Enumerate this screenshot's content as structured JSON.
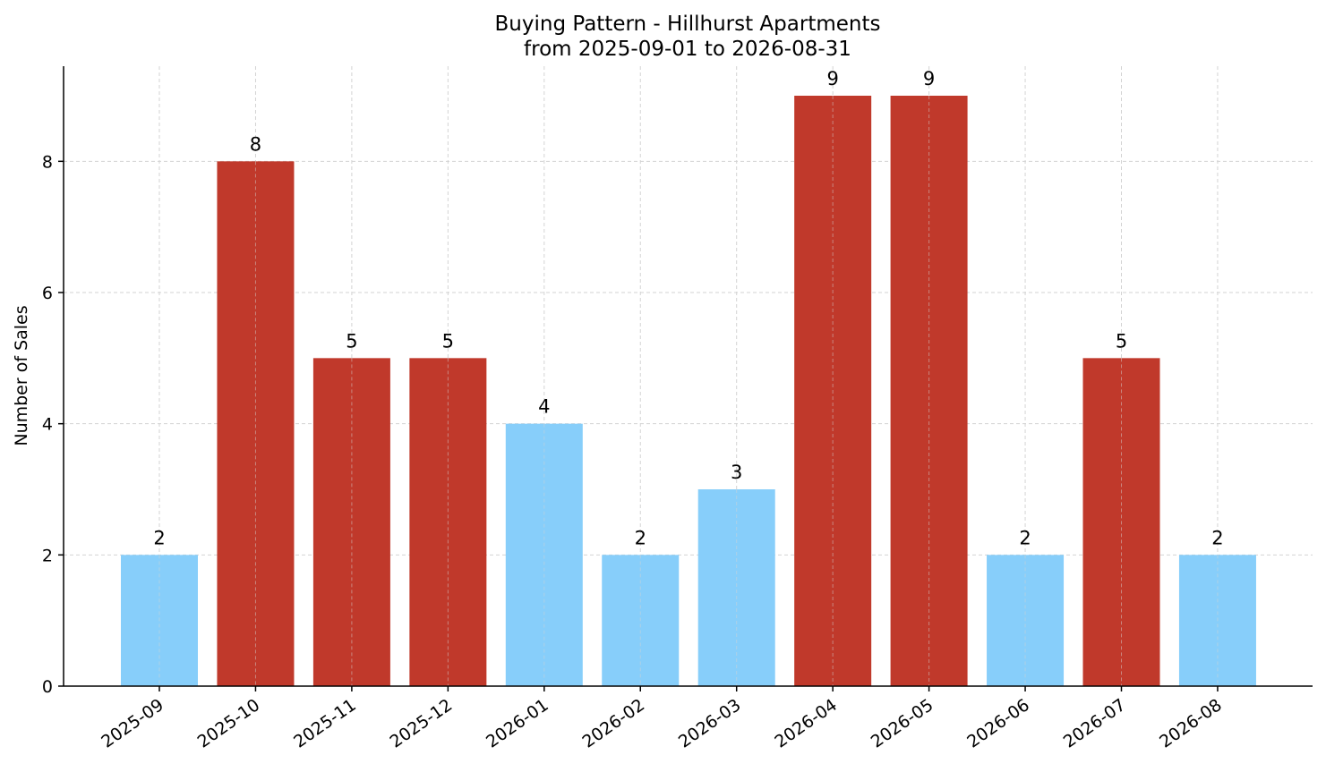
{
  "chart_data": {
    "type": "bar",
    "title": "Buying Pattern - Hillhurst Apartments",
    "subtitle": "from 2025-09-01 to 2026-08-31",
    "xlabel": "",
    "ylabel": "Number of Sales",
    "categories": [
      "2025-09",
      "2025-10",
      "2025-11",
      "2025-12",
      "2026-01",
      "2026-02",
      "2026-03",
      "2026-04",
      "2026-05",
      "2026-06",
      "2026-07",
      "2026-08"
    ],
    "values": [
      2,
      8,
      5,
      5,
      4,
      2,
      3,
      9,
      9,
      2,
      5,
      2
    ],
    "bar_colors": [
      "#87cefa",
      "#c0392b",
      "#c0392b",
      "#c0392b",
      "#87cefa",
      "#87cefa",
      "#87cefa",
      "#c0392b",
      "#c0392b",
      "#87cefa",
      "#c0392b",
      "#87cefa"
    ],
    "ylim": [
      0,
      9.45
    ],
    "yticks": [
      0,
      2,
      4,
      6,
      8
    ],
    "grid": true,
    "legend": "none",
    "data_labels": true
  }
}
